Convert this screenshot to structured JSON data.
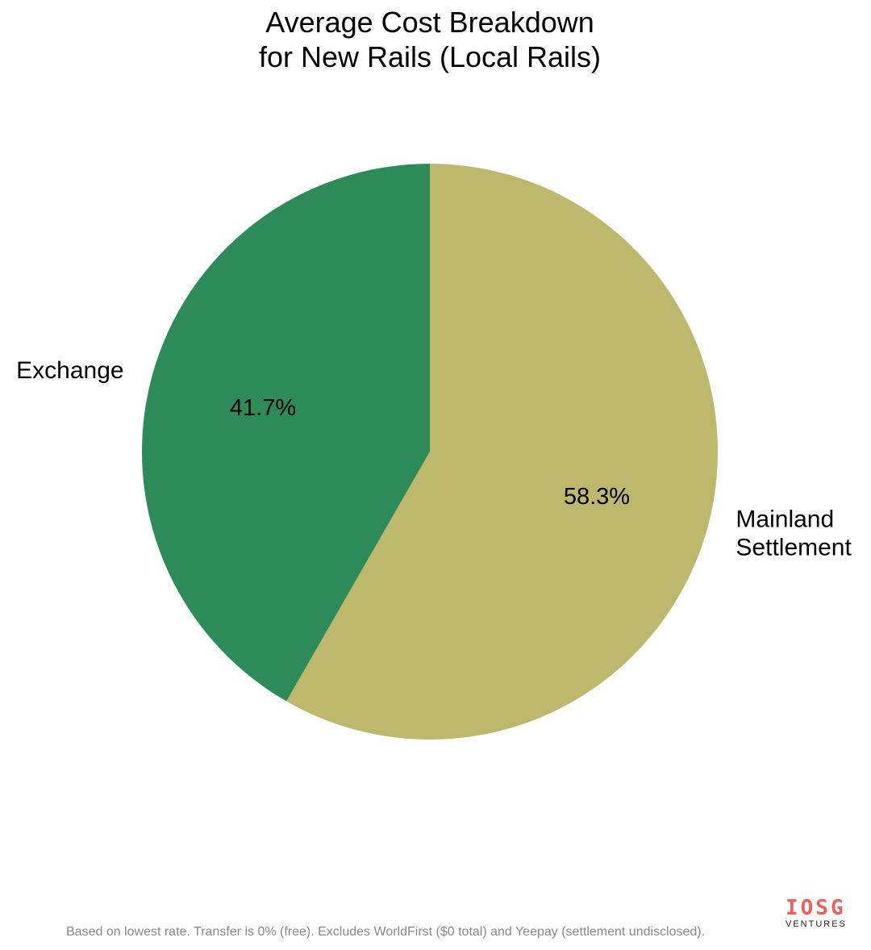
{
  "chart_data": {
    "type": "pie",
    "title_lines": [
      "Average Cost Breakdown",
      "for New Rails (Local Rails)"
    ],
    "slices": [
      {
        "label": "Mainland Settlement",
        "label_lines": [
          "Mainland",
          "Settlement"
        ],
        "value": 58.3,
        "pct_label": "58.3%",
        "color": "#bdb86c"
      },
      {
        "label": "Exchange",
        "label_lines": [
          "Exchange"
        ],
        "value": 41.7,
        "pct_label": "41.7%",
        "color": "#2d8b5a"
      }
    ],
    "start_angle": "top",
    "direction": "clockwise",
    "legend": "none"
  },
  "footer": "Based on lowest rate. Transfer is 0% (free). Excludes WorldFirst ($0 total) and Yeepay (settlement undisclosed).",
  "logo": {
    "mark": "IOSG",
    "sub": "VENTURES",
    "color": "#f0605a"
  }
}
